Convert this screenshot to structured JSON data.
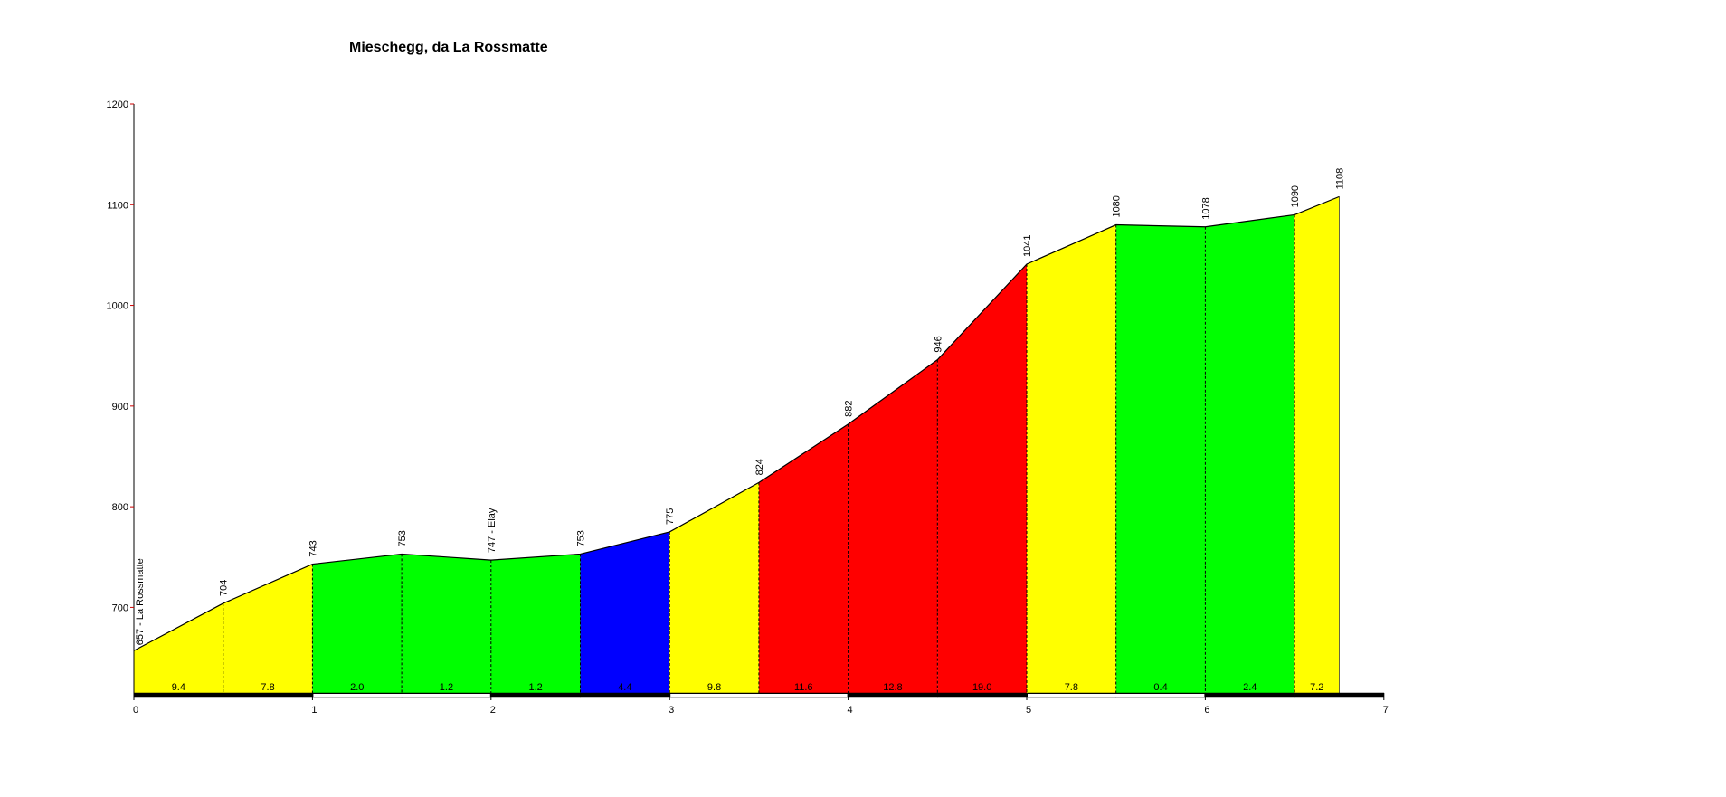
{
  "chart_data": {
    "type": "area",
    "title": "Mieschegg, da La Rossmatte",
    "xlabel": "",
    "ylabel": "",
    "xlim": [
      0,
      7
    ],
    "ylim": [
      615,
      1200
    ],
    "grid": false,
    "x_ticks": [
      "0",
      "1",
      "2",
      "3",
      "4",
      "5",
      "6",
      "7"
    ],
    "y_ticks": [
      "700",
      "800",
      "900",
      "1000",
      "1100",
      "1200"
    ],
    "points": [
      {
        "x": 0.0,
        "y": 657,
        "label": "657 - La Rossmatte"
      },
      {
        "x": 0.5,
        "y": 704,
        "label": "704"
      },
      {
        "x": 1.0,
        "y": 743,
        "label": "743"
      },
      {
        "x": 1.5,
        "y": 753,
        "label": "753"
      },
      {
        "x": 2.0,
        "y": 747,
        "label": "747 - Elay"
      },
      {
        "x": 2.5,
        "y": 753,
        "label": "753"
      },
      {
        "x": 3.0,
        "y": 775,
        "label": "775"
      },
      {
        "x": 3.5,
        "y": 824,
        "label": "824"
      },
      {
        "x": 4.0,
        "y": 882,
        "label": "882"
      },
      {
        "x": 4.5,
        "y": 946,
        "label": "946"
      },
      {
        "x": 5.0,
        "y": 1041,
        "label": "1041"
      },
      {
        "x": 5.5,
        "y": 1080,
        "label": "1080"
      },
      {
        "x": 6.0,
        "y": 1078,
        "label": "1078"
      },
      {
        "x": 6.5,
        "y": 1090,
        "label": "1090"
      },
      {
        "x": 6.75,
        "y": 1108,
        "label": "1108"
      }
    ],
    "segments": [
      {
        "from": 0.0,
        "to": 0.5,
        "gradient": "9.4",
        "color": "#ffff00"
      },
      {
        "from": 0.5,
        "to": 1.0,
        "gradient": "7.8",
        "color": "#ffff00"
      },
      {
        "from": 1.0,
        "to": 1.5,
        "gradient": "2.0",
        "color": "#00ff00"
      },
      {
        "from": 1.5,
        "to": 2.0,
        "gradient": "1.2",
        "color": "#00ff00"
      },
      {
        "from": 2.0,
        "to": 2.5,
        "gradient": "1.2",
        "color": "#00ff00"
      },
      {
        "from": 2.5,
        "to": 3.0,
        "gradient": "4.4",
        "color": "#0000ff"
      },
      {
        "from": 3.0,
        "to": 3.5,
        "gradient": "9.8",
        "color": "#ffff00"
      },
      {
        "from": 3.5,
        "to": 4.0,
        "gradient": "11.6",
        "color": "#ff0000"
      },
      {
        "from": 4.0,
        "to": 4.5,
        "gradient": "12.8",
        "color": "#ff0000"
      },
      {
        "from": 4.5,
        "to": 5.0,
        "gradient": "19.0",
        "color": "#ff0000"
      },
      {
        "from": 5.0,
        "to": 5.5,
        "gradient": "7.8",
        "color": "#ffff00"
      },
      {
        "from": 5.5,
        "to": 6.0,
        "gradient": "0.4",
        "color": "#00ff00"
      },
      {
        "from": 6.0,
        "to": 6.5,
        "gradient": "2.4",
        "color": "#00ff00"
      },
      {
        "from": 6.5,
        "to": 6.75,
        "gradient": "7.2",
        "color": "#ffff00"
      }
    ]
  }
}
